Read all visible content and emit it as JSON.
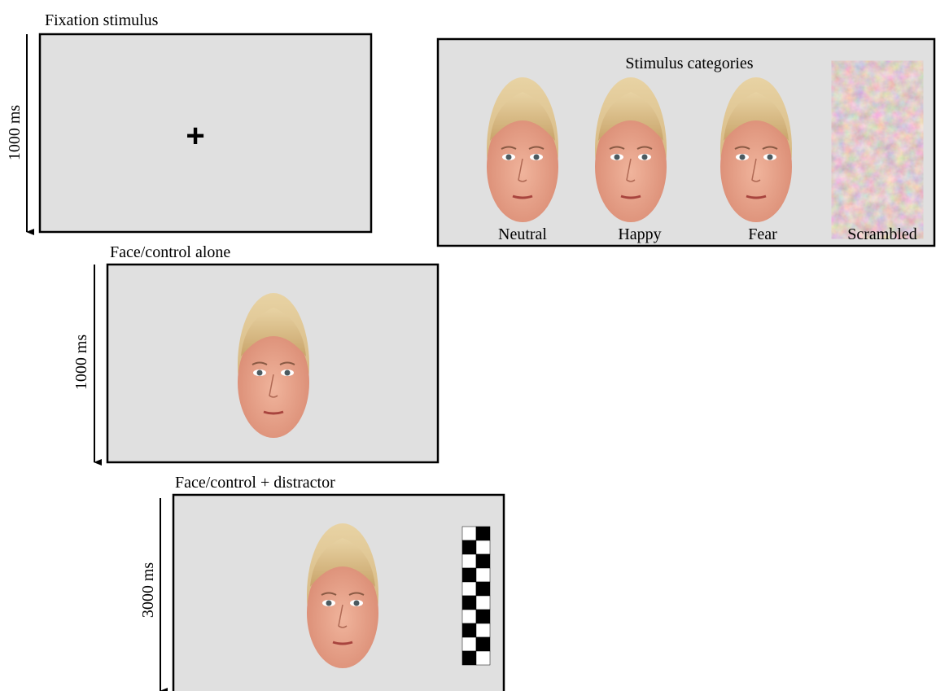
{
  "panels": [
    {
      "title": "Fixation stimulus",
      "duration": "1000 ms"
    },
    {
      "title": "Face/control alone",
      "duration": "1000 ms"
    },
    {
      "title": "Face/control + distractor",
      "duration": "3000 ms"
    }
  ],
  "categories": {
    "title": "Stimulus categories",
    "labels": [
      "Neutral",
      "Happy",
      "Fear",
      "Scrambled"
    ]
  }
}
